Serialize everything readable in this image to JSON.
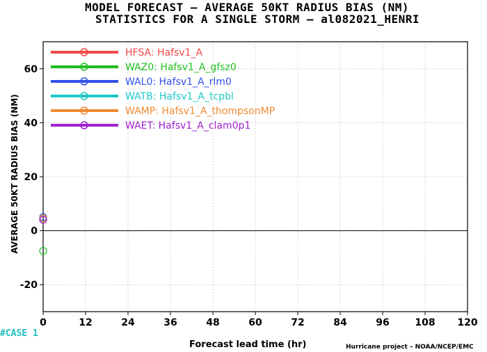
{
  "title_line1": "MODEL FORECAST – AVERAGE 50KT RADIUS BIAS (NM)",
  "title_line2": "STATISTICS FOR A SINGLE STORM – al082021_HENRI",
  "case_label": "#CASE  1",
  "credit": "Hurricane project – NOAA/NCEP/EMC",
  "chart_data": {
    "type": "scatter",
    "xlabel": "Forecast lead time (hr)",
    "ylabel": "AVERAGE 50KT RADIUS BIAS (NM)",
    "xlim": [
      0,
      120
    ],
    "ylim": [
      -30,
      70
    ],
    "xticks": [
      0,
      12,
      24,
      36,
      48,
      60,
      72,
      84,
      96,
      108,
      120
    ],
    "yticks": [
      -20,
      0,
      20,
      40,
      60
    ],
    "grid": true,
    "legend_position": "top-left",
    "series": [
      {
        "code": "HFSA:",
        "name": "Hafsv1_A",
        "color": "#f04848",
        "x": [
          0
        ],
        "y": [
          4.5
        ]
      },
      {
        "code": "WAZ0:",
        "name": "Hafsv1_A_gfsz0",
        "color": "#20c020",
        "x": [
          0
        ],
        "y": [
          -7.5
        ]
      },
      {
        "code": "WAL0:",
        "name": "Hafsv1_A_rlm0",
        "color": "#3050e8",
        "x": [
          0
        ],
        "y": [
          5
        ]
      },
      {
        "code": "WATB:",
        "name": "Hafsv1_A_tcpbl",
        "color": "#20c8c8",
        "x": [
          0
        ],
        "y": [
          4.5
        ]
      },
      {
        "code": "WAMP:",
        "name": "Hafsv1_A_thompsonMP",
        "color": "#f08a30",
        "x": [
          0
        ],
        "y": [
          4.5
        ]
      },
      {
        "code": "WAET:",
        "name": "Hafsv1_A_clam0p1",
        "color": "#a020d0",
        "x": [
          0
        ],
        "y": [
          4
        ]
      }
    ]
  }
}
